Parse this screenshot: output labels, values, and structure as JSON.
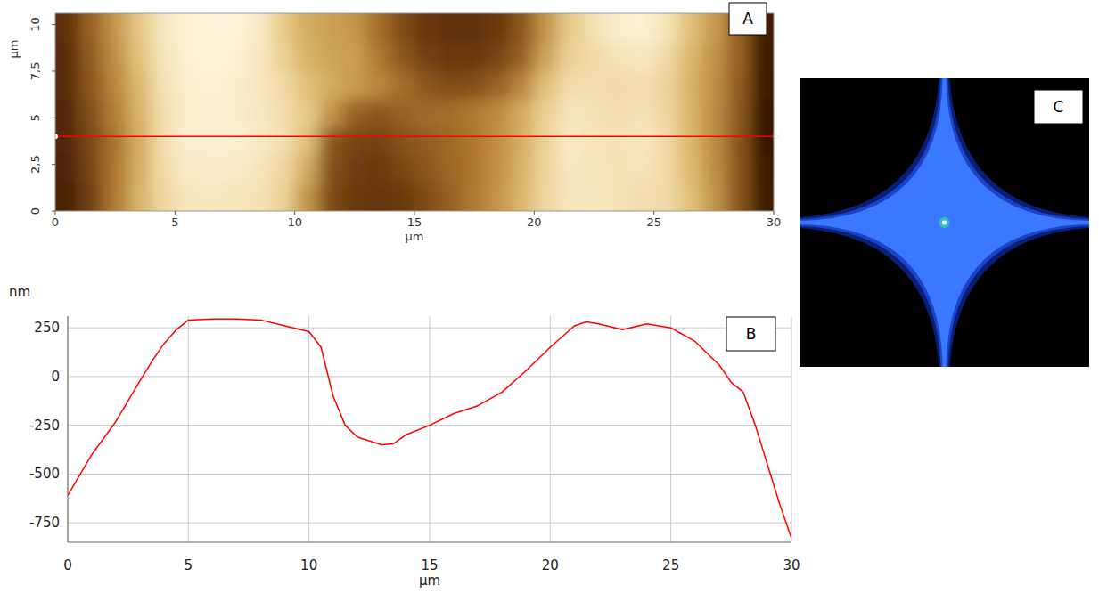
{
  "chart_data": [
    {
      "type": "heatmap",
      "label": "A",
      "x_label": "μm",
      "y_label": "μm",
      "xlim": [
        0,
        30
      ],
      "ylim": [
        0,
        10.6
      ],
      "xticks": [
        0,
        5,
        10,
        15,
        20,
        25,
        30
      ],
      "yticks": [
        0,
        {
          "value": 2.5,
          "label": "2,5"
        },
        5,
        {
          "value": 7.5,
          "label": "7,5"
        },
        10
      ],
      "zlim": [
        -850,
        310
      ],
      "profile_y": 4,
      "color": "#ff0000",
      "x": [
        0.5,
        1.5,
        2.5,
        3.5,
        4.5,
        5.5,
        6.5,
        7.5,
        8.5,
        9.5,
        10.5,
        11.5,
        12.5,
        13.5,
        14.5,
        15.5,
        16.5,
        17.5,
        18.5,
        19.5,
        20.5,
        21.5,
        22.5,
        23.5,
        24.5,
        25.5,
        26.5,
        27.5,
        28.5,
        29.5
      ],
      "y": [
        0.75,
        2.25,
        3.75,
        5.25,
        6.75,
        8.25,
        9.75
      ],
      "cells": [
        [
          -550,
          -350,
          -100,
          100,
          220,
          260,
          270,
          260,
          250,
          200,
          0,
          -300,
          -380,
          -400,
          -380,
          -300,
          -200,
          -100,
          0,
          120,
          220,
          260,
          270,
          250,
          240,
          230,
          150,
          0,
          -250,
          -600
        ],
        [
          -520,
          -330,
          -110,
          90,
          230,
          280,
          285,
          280,
          260,
          220,
          80,
          -280,
          -360,
          -380,
          -320,
          -250,
          -180,
          -110,
          -10,
          100,
          215,
          270,
          260,
          250,
          255,
          230,
          130,
          -20,
          -250,
          -620
        ],
        [
          -500,
          -310,
          -120,
          80,
          240,
          295,
          295,
          295,
          275,
          245,
          150,
          -250,
          -330,
          -345,
          -275,
          -220,
          -170,
          -110,
          -20,
          90,
          210,
          280,
          255,
          250,
          270,
          230,
          120,
          -30,
          -250,
          -650
        ],
        [
          -480,
          -280,
          -80,
          100,
          240,
          290,
          290,
          290,
          270,
          240,
          180,
          0,
          -200,
          -250,
          -200,
          -160,
          -140,
          -100,
          -30,
          80,
          200,
          260,
          250,
          240,
          250,
          220,
          110,
          -30,
          -230,
          -640
        ],
        [
          -460,
          -250,
          -50,
          120,
          250,
          290,
          300,
          290,
          270,
          230,
          150,
          80,
          20,
          -50,
          -150,
          -250,
          -300,
          -280,
          -200,
          -50,
          150,
          240,
          240,
          230,
          240,
          210,
          100,
          -20,
          -220,
          -620
        ],
        [
          -450,
          -230,
          -20,
          150,
          260,
          300,
          310,
          300,
          270,
          200,
          100,
          50,
          30,
          -100,
          -250,
          -350,
          -380,
          -380,
          -330,
          -200,
          50,
          200,
          230,
          250,
          270,
          230,
          120,
          -10,
          -200,
          -600
        ],
        [
          -430,
          -200,
          0,
          170,
          270,
          300,
          310,
          310,
          280,
          180,
          80,
          40,
          0,
          -150,
          -300,
          -400,
          -420,
          -420,
          -380,
          -250,
          0,
          180,
          250,
          290,
          300,
          260,
          150,
          20,
          -200,
          -580
        ]
      ]
    },
    {
      "type": "line",
      "label": "B",
      "x_label": "μm",
      "y_label": "nm",
      "color": "#ff0000",
      "grid": true,
      "xlim": [
        0,
        30
      ],
      "ylim": [
        -850,
        310
      ],
      "xticks": [
        0,
        5,
        10,
        15,
        20,
        25,
        30
      ],
      "yticks": [
        -750,
        -500,
        -250,
        0,
        250
      ],
      "x": [
        0,
        1,
        2,
        3,
        3.5,
        4,
        4.5,
        5,
        6,
        7,
        8,
        9,
        10,
        10.5,
        11,
        11.5,
        12,
        13,
        13.5,
        14,
        15,
        16,
        17,
        18,
        19,
        20,
        21,
        21.5,
        22,
        23,
        24,
        25,
        26,
        27,
        27.5,
        28,
        28.5,
        29,
        29.5,
        30
      ],
      "values": [
        -610,
        -400,
        -230,
        -20,
        80,
        170,
        240,
        290,
        295,
        295,
        290,
        260,
        230,
        150,
        -100,
        -250,
        -310,
        -350,
        -345,
        -300,
        -250,
        -190,
        -150,
        -80,
        30,
        150,
        260,
        280,
        270,
        240,
        270,
        250,
        180,
        60,
        -30,
        -80,
        -250,
        -450,
        -650,
        -830
      ]
    },
    {
      "type": "image",
      "label": "C"
    }
  ]
}
